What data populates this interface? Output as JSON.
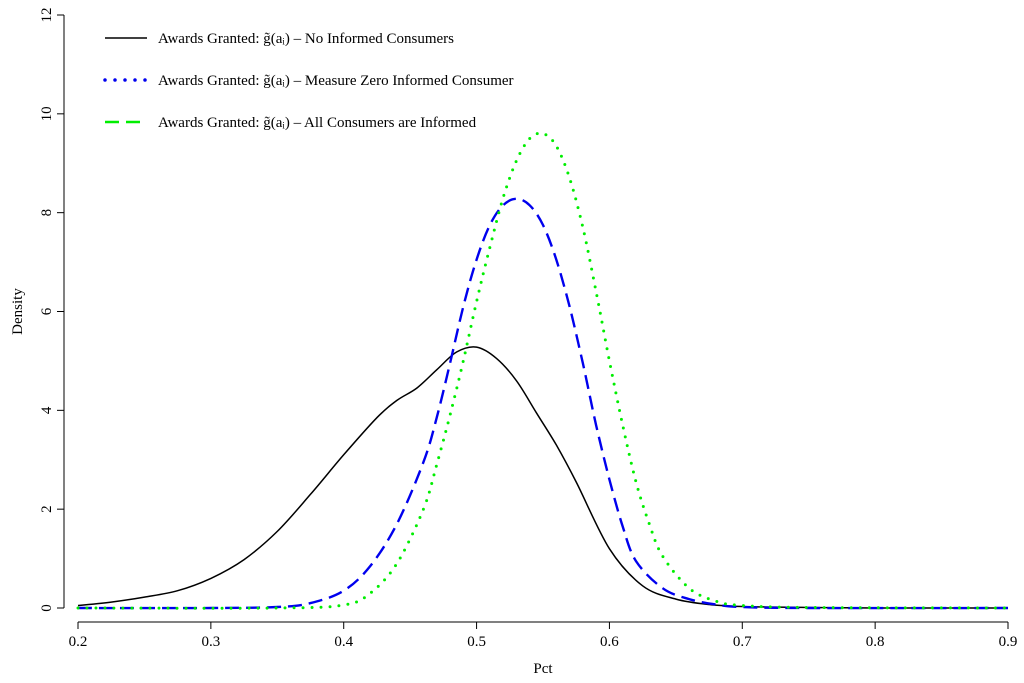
{
  "chart_data": {
    "type": "line",
    "xlabel": "Pct",
    "ylabel": "Density",
    "xlim": [
      0.2,
      0.9
    ],
    "ylim": [
      0,
      12
    ],
    "x_ticks": [
      "0.2",
      "0.3",
      "0.4",
      "0.5",
      "0.6",
      "0.7",
      "0.8",
      "0.9"
    ],
    "y_ticks": [
      "0",
      "2",
      "4",
      "6",
      "8",
      "10",
      "12"
    ],
    "grid": false,
    "legend_position": "top-left",
    "series": [
      {
        "name": "Awards Granted: g̃(aᵢ) – No Informed Consumers",
        "color": "#000000",
        "style": "solid",
        "x": [
          0.2,
          0.225,
          0.25,
          0.275,
          0.3,
          0.325,
          0.35,
          0.375,
          0.4,
          0.425,
          0.44,
          0.455,
          0.47,
          0.485,
          0.5,
          0.515,
          0.53,
          0.545,
          0.56,
          0.575,
          0.6,
          0.625,
          0.65,
          0.675,
          0.7,
          0.75,
          0.8,
          0.85,
          0.9
        ],
        "values": [
          0.05,
          0.12,
          0.22,
          0.35,
          0.6,
          0.98,
          1.55,
          2.3,
          3.1,
          3.85,
          4.2,
          4.45,
          4.82,
          5.18,
          5.28,
          5.05,
          4.6,
          3.95,
          3.3,
          2.55,
          1.2,
          0.45,
          0.18,
          0.07,
          0.03,
          0.01,
          0.0,
          0.0,
          0.0
        ]
      },
      {
        "name": "Awards Granted: g̃(aᵢ) – Measure Zero Informed Consumer",
        "color": "#0000ee",
        "style": "dotted",
        "x": [
          0.2,
          0.3,
          0.35,
          0.375,
          0.4,
          0.42,
          0.44,
          0.46,
          0.47,
          0.48,
          0.49,
          0.5,
          0.51,
          0.52,
          0.53,
          0.54,
          0.55,
          0.56,
          0.57,
          0.58,
          0.59,
          0.6,
          0.61,
          0.62,
          0.64,
          0.66,
          0.68,
          0.7,
          0.75,
          0.9
        ],
        "values": [
          0.0,
          0.0,
          0.02,
          0.1,
          0.35,
          0.85,
          1.7,
          2.95,
          3.85,
          4.95,
          6.1,
          7.05,
          7.75,
          8.15,
          8.28,
          8.15,
          7.75,
          7.05,
          6.1,
          4.95,
          3.7,
          2.6,
          1.65,
          0.95,
          0.4,
          0.18,
          0.07,
          0.02,
          0.0,
          0.0
        ]
      },
      {
        "name": "Awards Granted: g̃(aᵢ) – All Consumers are Informed",
        "color": "#00ee00",
        "style": "dashed",
        "x": [
          0.2,
          0.35,
          0.4,
          0.42,
          0.44,
          0.46,
          0.47,
          0.48,
          0.49,
          0.5,
          0.51,
          0.52,
          0.53,
          0.54,
          0.55,
          0.56,
          0.57,
          0.58,
          0.59,
          0.6,
          0.61,
          0.62,
          0.63,
          0.64,
          0.66,
          0.68,
          0.7,
          0.75,
          0.9
        ],
        "values": [
          0.0,
          0.0,
          0.06,
          0.3,
          0.9,
          2.0,
          2.9,
          3.9,
          5.0,
          6.2,
          7.3,
          8.3,
          9.05,
          9.5,
          9.6,
          9.35,
          8.7,
          7.7,
          6.4,
          5.0,
          3.7,
          2.55,
          1.7,
          1.05,
          0.4,
          0.14,
          0.05,
          0.01,
          0.0
        ]
      }
    ]
  }
}
